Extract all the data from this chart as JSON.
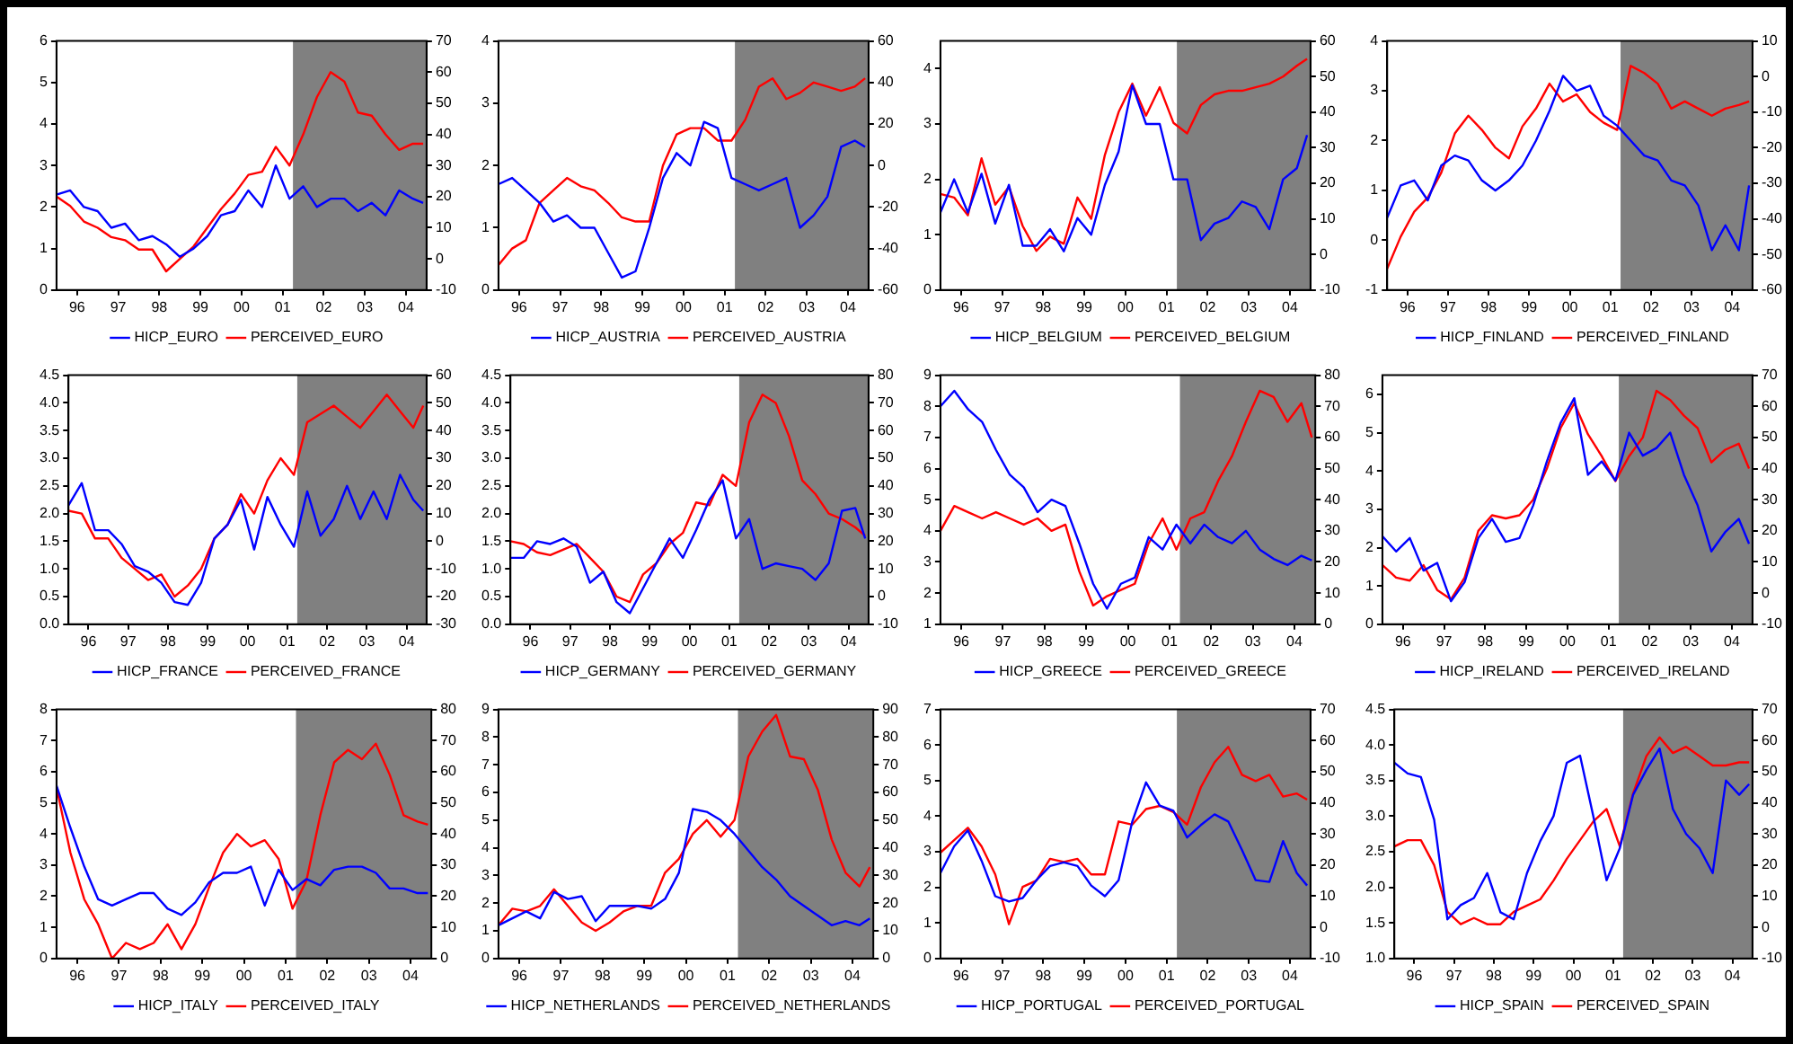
{
  "chart_data": [
    {
      "type": "line",
      "x": [
        "1995-07",
        "1995-11",
        "1996-03",
        "1996-07",
        "1996-11",
        "1997-03",
        "1997-07",
        "1997-11",
        "1998-03",
        "1998-07",
        "1998-11",
        "1999-03",
        "1999-07",
        "1999-11",
        "2000-03",
        "2000-07",
        "2000-11",
        "2001-03",
        "2001-07",
        "2001-11",
        "2002-03",
        "2002-07",
        "2002-11",
        "2003-03",
        "2003-07",
        "2003-11",
        "2004-03",
        "2004-06"
      ],
      "xlim": [
        "1995-07",
        "2004-07"
      ],
      "xticks": [
        {
          "value": "1996",
          "label": "96"
        },
        {
          "value": "1997",
          "label": "97"
        },
        {
          "value": "1998",
          "label": "98"
        },
        {
          "value": "1999",
          "label": "99"
        },
        {
          "value": "2000",
          "label": "00"
        },
        {
          "value": "2001",
          "label": "01"
        },
        {
          "value": "2002",
          "label": "02"
        },
        {
          "value": "2003",
          "label": "03"
        },
        {
          "value": "2004",
          "label": "04"
        }
      ],
      "ylim": [
        0,
        6
      ],
      "yticks": [
        0,
        1,
        2,
        3,
        4,
        5,
        6
      ],
      "y2lim": [
        -10,
        70
      ],
      "y2ticks": [
        -10,
        0,
        10,
        20,
        30,
        40,
        50,
        60,
        70
      ],
      "legend": "bottom",
      "bands": [
        {
          "axis": "x",
          "from": "2001-04",
          "to": "2004-07",
          "color": "#808080"
        }
      ],
      "series": [
        {
          "name": "HICP_EURO",
          "color": "#0000ff",
          "values": [
            2.3,
            2.4,
            2.0,
            1.9,
            1.5,
            1.6,
            1.2,
            1.3,
            1.1,
            0.8,
            1.0,
            1.3,
            1.8,
            1.9,
            2.4,
            2.0,
            3.0,
            2.2,
            2.5,
            2.0,
            2.2,
            2.2,
            1.9,
            2.1,
            1.8,
            2.4,
            2.2,
            2.1
          ]
        },
        {
          "name": "PERCEIVED_EURO",
          "color": "#ff0000",
          "axis": "y2",
          "values": [
            20,
            17,
            12,
            10,
            7,
            6,
            3,
            3,
            -4,
            0,
            4,
            10,
            16,
            21,
            27,
            28,
            36,
            30,
            40,
            52,
            60,
            57,
            47,
            46,
            40,
            35,
            37,
            37
          ]
        }
      ]
    },
    {
      "type": "line",
      "x": [
        "1995-07",
        "1995-11",
        "1996-03",
        "1996-07",
        "1996-11",
        "1997-03",
        "1997-07",
        "1997-11",
        "1998-03",
        "1998-07",
        "1998-11",
        "1999-03",
        "1999-07",
        "1999-11",
        "2000-03",
        "2000-07",
        "2000-11",
        "2001-03",
        "2001-07",
        "2001-11",
        "2002-03",
        "2002-07",
        "2002-11",
        "2003-03",
        "2003-07",
        "2003-11",
        "2004-03",
        "2004-06"
      ],
      "xlim": [
        "1995-07",
        "2004-07"
      ],
      "xticks": [
        {
          "value": "1996",
          "label": "96"
        },
        {
          "value": "1997",
          "label": "97"
        },
        {
          "value": "1998",
          "label": "98"
        },
        {
          "value": "1999",
          "label": "99"
        },
        {
          "value": "2000",
          "label": "00"
        },
        {
          "value": "2001",
          "label": "01"
        },
        {
          "value": "2002",
          "label": "02"
        },
        {
          "value": "2003",
          "label": "03"
        },
        {
          "value": "2004",
          "label": "04"
        }
      ],
      "ylim": [
        0,
        4
      ],
      "yticks": [
        0,
        1,
        2,
        3,
        4
      ],
      "y2lim": [
        -60,
        60
      ],
      "y2ticks": [
        -60,
        -40,
        -20,
        0,
        20,
        40,
        60
      ],
      "legend": "bottom",
      "bands": [
        {
          "axis": "x",
          "from": "2001-04",
          "to": "2004-07",
          "color": "#808080"
        }
      ],
      "series": [
        {
          "name": "HICP_AUSTRIA",
          "color": "#0000ff",
          "values": [
            1.7,
            1.8,
            1.6,
            1.4,
            1.1,
            1.2,
            1.0,
            1.0,
            0.6,
            0.2,
            0.3,
            1.0,
            1.8,
            2.2,
            2.0,
            2.7,
            2.6,
            1.8,
            1.7,
            1.6,
            1.7,
            1.8,
            1.0,
            1.2,
            1.5,
            2.3,
            2.4,
            2.3
          ]
        },
        {
          "name": "PERCEIVED_AUSTRIA",
          "color": "#ff0000",
          "axis": "y2",
          "values": [
            -48,
            -40,
            -36,
            -18,
            -12,
            -6,
            -10,
            -12,
            -18,
            -25,
            -27,
            -27,
            0,
            15,
            18,
            18,
            12,
            12,
            22,
            38,
            42,
            32,
            35,
            40,
            38,
            36,
            38,
            42
          ]
        }
      ]
    },
    {
      "type": "line",
      "x": [
        "1995-07",
        "1995-11",
        "1996-03",
        "1996-07",
        "1996-11",
        "1997-03",
        "1997-07",
        "1997-11",
        "1998-03",
        "1998-07",
        "1998-11",
        "1999-03",
        "1999-07",
        "1999-11",
        "2000-03",
        "2000-07",
        "2000-11",
        "2001-03",
        "2001-07",
        "2001-11",
        "2002-03",
        "2002-07",
        "2002-11",
        "2003-03",
        "2003-07",
        "2003-11",
        "2004-03",
        "2004-06"
      ],
      "xlim": [
        "1995-07",
        "2004-07"
      ],
      "xticks": [
        {
          "value": "1996",
          "label": "96"
        },
        {
          "value": "1997",
          "label": "97"
        },
        {
          "value": "1998",
          "label": "98"
        },
        {
          "value": "1999",
          "label": "99"
        },
        {
          "value": "2000",
          "label": "00"
        },
        {
          "value": "2001",
          "label": "01"
        },
        {
          "value": "2002",
          "label": "02"
        },
        {
          "value": "2003",
          "label": "03"
        },
        {
          "value": "2004",
          "label": "04"
        }
      ],
      "ylim": [
        0,
        4.5
      ],
      "yticks": [
        0,
        1,
        2,
        3,
        4
      ],
      "y2lim": [
        -10,
        60
      ],
      "y2ticks": [
        -10,
        0,
        10,
        20,
        30,
        40,
        50,
        60
      ],
      "legend": "bottom",
      "bands": [
        {
          "axis": "x",
          "from": "2001-04",
          "to": "2004-07",
          "color": "#808080"
        }
      ],
      "series": [
        {
          "name": "HICP_BELGIUM",
          "color": "#0000ff",
          "values": [
            1.4,
            2.0,
            1.4,
            2.1,
            1.2,
            1.9,
            0.8,
            0.8,
            1.1,
            0.7,
            1.3,
            1.0,
            1.9,
            2.5,
            3.7,
            3.0,
            3.0,
            2.0,
            2.0,
            0.9,
            1.2,
            1.3,
            1.6,
            1.5,
            1.1,
            2.0,
            2.2,
            2.8
          ]
        },
        {
          "name": "PERCEIVED_BELGIUM",
          "color": "#ff0000",
          "axis": "y2",
          "values": [
            17,
            16,
            11,
            27,
            14,
            19,
            8,
            1,
            5,
            3,
            16,
            10,
            28,
            40,
            48,
            39,
            47,
            37,
            34,
            42,
            45,
            46,
            46,
            47,
            48,
            50,
            53,
            55
          ]
        }
      ]
    },
    {
      "type": "line",
      "x": [
        "1995-07",
        "1995-11",
        "1996-03",
        "1996-07",
        "1996-11",
        "1997-03",
        "1997-07",
        "1997-11",
        "1998-03",
        "1998-07",
        "1998-11",
        "1999-03",
        "1999-07",
        "1999-11",
        "2000-03",
        "2000-07",
        "2000-11",
        "2001-03",
        "2001-07",
        "2001-11",
        "2002-03",
        "2002-07",
        "2002-11",
        "2003-03",
        "2003-07",
        "2003-11",
        "2004-03",
        "2004-06"
      ],
      "xlim": [
        "1995-07",
        "2004-07"
      ],
      "xticks": [
        {
          "value": "1996",
          "label": "96"
        },
        {
          "value": "1997",
          "label": "97"
        },
        {
          "value": "1998",
          "label": "98"
        },
        {
          "value": "1999",
          "label": "99"
        },
        {
          "value": "2000",
          "label": "00"
        },
        {
          "value": "2001",
          "label": "01"
        },
        {
          "value": "2002",
          "label": "02"
        },
        {
          "value": "2003",
          "label": "03"
        },
        {
          "value": "2004",
          "label": "04"
        }
      ],
      "ylim": [
        -1,
        4
      ],
      "yticks": [
        -1,
        0,
        1,
        2,
        3,
        4
      ],
      "y2lim": [
        -60,
        10
      ],
      "y2ticks": [
        -60,
        -50,
        -40,
        -30,
        -20,
        -10,
        0,
        10
      ],
      "legend": "bottom",
      "bands": [
        {
          "axis": "x",
          "from": "2001-04",
          "to": "2004-07",
          "color": "#808080"
        }
      ],
      "series": [
        {
          "name": "HICP_FINLAND",
          "color": "#0000ff",
          "values": [
            0.45,
            1.1,
            1.2,
            0.8,
            1.5,
            1.7,
            1.6,
            1.2,
            1.0,
            1.2,
            1.5,
            2.0,
            2.6,
            3.3,
            3.0,
            3.1,
            2.5,
            2.3,
            2.0,
            1.7,
            1.6,
            1.2,
            1.1,
            0.7,
            -0.2,
            0.3,
            -0.2,
            1.1
          ]
        },
        {
          "name": "PERCEIVED_FINLAND",
          "color": "#ff0000",
          "axis": "y2",
          "values": [
            -54,
            -45,
            -38,
            -34,
            -27,
            -16,
            -11,
            -15,
            -20,
            -23,
            -14,
            -9,
            -2,
            -7,
            -5,
            -10,
            -13,
            -15,
            3,
            1,
            -2,
            -9,
            -7,
            -9,
            -11,
            -9,
            -8,
            -7
          ]
        }
      ]
    },
    {
      "type": "line",
      "x": [
        "1995-07",
        "1995-11",
        "1996-03",
        "1996-07",
        "1996-11",
        "1997-03",
        "1997-07",
        "1997-11",
        "1998-03",
        "1998-07",
        "1998-11",
        "1999-03",
        "1999-07",
        "1999-11",
        "2000-03",
        "2000-07",
        "2000-11",
        "2001-03",
        "2001-07",
        "2001-11",
        "2002-03",
        "2002-07",
        "2002-11",
        "2003-03",
        "2003-07",
        "2003-11",
        "2004-03",
        "2004-06"
      ],
      "xlim": [
        "1995-07",
        "2004-07"
      ],
      "xticks": [
        {
          "value": "1996",
          "label": "96"
        },
        {
          "value": "1997",
          "label": "97"
        },
        {
          "value": "1998",
          "label": "98"
        },
        {
          "value": "1999",
          "label": "99"
        },
        {
          "value": "2000",
          "label": "00"
        },
        {
          "value": "2001",
          "label": "01"
        },
        {
          "value": "2002",
          "label": "02"
        },
        {
          "value": "2003",
          "label": "03"
        },
        {
          "value": "2004",
          "label": "04"
        }
      ],
      "ylim": [
        0,
        4.5
      ],
      "yticks": [
        {
          "value": 0,
          "label": "0.0"
        },
        {
          "value": 0.5,
          "label": "0.5"
        },
        {
          "value": 1,
          "label": "1.0"
        },
        {
          "value": 1.5,
          "label": "1.5"
        },
        {
          "value": 2,
          "label": "2.0"
        },
        {
          "value": 2.5,
          "label": "2.5"
        },
        {
          "value": 3,
          "label": "3.0"
        },
        {
          "value": 3.5,
          "label": "3.5"
        },
        {
          "value": 4,
          "label": "4.0"
        },
        {
          "value": 4.5,
          "label": "4.5"
        }
      ],
      "y2lim": [
        -30,
        60
      ],
      "y2ticks": [
        -30,
        -20,
        -10,
        0,
        10,
        20,
        30,
        40,
        50,
        60
      ],
      "legend": "bottom",
      "bands": [
        {
          "axis": "x",
          "from": "2001-04",
          "to": "2004-07",
          "color": "#808080"
        }
      ],
      "series": [
        {
          "name": "HICP_FRANCE",
          "color": "#0000ff",
          "values": [
            2.15,
            2.55,
            1.7,
            1.7,
            1.45,
            1.05,
            0.95,
            0.75,
            0.4,
            0.35,
            0.75,
            1.55,
            1.8,
            2.25,
            1.35,
            2.3,
            1.8,
            1.4,
            2.4,
            1.6,
            1.9,
            2.5,
            1.9,
            2.4,
            1.9,
            2.7,
            2.25,
            2.05
          ]
        },
        {
          "name": "PERCEIVED_FRANCE",
          "color": "#ff0000",
          "axis": "y2",
          "values": [
            11,
            10,
            1,
            1,
            -6,
            -10,
            -14,
            -12,
            -20,
            -16,
            -10,
            1,
            6,
            17,
            10,
            22,
            30,
            24,
            43,
            46,
            49,
            45,
            41,
            47,
            53,
            47,
            41,
            49
          ]
        }
      ]
    },
    {
      "type": "line",
      "x": [
        "1995-07",
        "1995-11",
        "1996-03",
        "1996-07",
        "1996-11",
        "1997-03",
        "1997-07",
        "1997-11",
        "1998-03",
        "1998-07",
        "1998-11",
        "1999-03",
        "1999-07",
        "1999-11",
        "2000-03",
        "2000-07",
        "2000-11",
        "2001-03",
        "2001-07",
        "2001-11",
        "2002-03",
        "2002-07",
        "2002-11",
        "2003-03",
        "2003-07",
        "2003-11",
        "2004-03",
        "2004-06"
      ],
      "xlim": [
        "1995-07",
        "2004-07"
      ],
      "xticks": [
        {
          "value": "1996",
          "label": "96"
        },
        {
          "value": "1997",
          "label": "97"
        },
        {
          "value": "1998",
          "label": "98"
        },
        {
          "value": "1999",
          "label": "99"
        },
        {
          "value": "2000",
          "label": "00"
        },
        {
          "value": "2001",
          "label": "01"
        },
        {
          "value": "2002",
          "label": "02"
        },
        {
          "value": "2003",
          "label": "03"
        },
        {
          "value": "2004",
          "label": "04"
        }
      ],
      "ylim": [
        0,
        4.5
      ],
      "yticks": [
        {
          "value": 0,
          "label": "0.0"
        },
        {
          "value": 0.5,
          "label": "0.5"
        },
        {
          "value": 1,
          "label": "1.0"
        },
        {
          "value": 1.5,
          "label": "1.5"
        },
        {
          "value": 2,
          "label": "2.0"
        },
        {
          "value": 2.5,
          "label": "2.5"
        },
        {
          "value": 3,
          "label": "3.0"
        },
        {
          "value": 3.5,
          "label": "3.5"
        },
        {
          "value": 4,
          "label": "4.0"
        },
        {
          "value": 4.5,
          "label": "4.5"
        }
      ],
      "y2lim": [
        -10,
        80
      ],
      "y2ticks": [
        -10,
        0,
        10,
        20,
        30,
        40,
        50,
        60,
        70,
        80
      ],
      "legend": "bottom",
      "bands": [
        {
          "axis": "x",
          "from": "2001-04",
          "to": "2004-07",
          "color": "#808080"
        }
      ],
      "series": [
        {
          "name": "HICP_GERMANY",
          "color": "#0000ff",
          "values": [
            1.2,
            1.2,
            1.5,
            1.45,
            1.55,
            1.4,
            0.75,
            0.95,
            0.4,
            0.2,
            0.65,
            1.1,
            1.55,
            1.2,
            1.7,
            2.25,
            2.6,
            1.55,
            1.9,
            1.0,
            1.1,
            1.05,
            1.0,
            0.8,
            1.1,
            2.05,
            2.1,
            1.55
          ]
        },
        {
          "name": "PERCEIVED_GERMANY",
          "color": "#ff0000",
          "axis": "y2",
          "values": [
            20,
            19,
            16,
            15,
            17,
            19,
            14,
            9,
            0,
            -2,
            8,
            12,
            19,
            23,
            34,
            33,
            44,
            40,
            63,
            73,
            70,
            58,
            42,
            37,
            30,
            28,
            25,
            22
          ]
        }
      ]
    },
    {
      "type": "line",
      "x": [
        "1995-07",
        "1995-11",
        "1996-03",
        "1996-07",
        "1996-11",
        "1997-03",
        "1997-07",
        "1997-11",
        "1998-03",
        "1998-07",
        "1998-11",
        "1999-03",
        "1999-07",
        "1999-11",
        "2000-03",
        "2000-07",
        "2000-11",
        "2001-03",
        "2001-07",
        "2001-11",
        "2002-03",
        "2002-07",
        "2002-11",
        "2003-03",
        "2003-07",
        "2003-11",
        "2004-03",
        "2004-06"
      ],
      "xlim": [
        "1995-07",
        "2004-07"
      ],
      "xticks": [
        {
          "value": "1996",
          "label": "96"
        },
        {
          "value": "1997",
          "label": "97"
        },
        {
          "value": "1998",
          "label": "98"
        },
        {
          "value": "1999",
          "label": "99"
        },
        {
          "value": "2000",
          "label": "00"
        },
        {
          "value": "2001",
          "label": "01"
        },
        {
          "value": "2002",
          "label": "02"
        },
        {
          "value": "2003",
          "label": "03"
        },
        {
          "value": "2004",
          "label": "04"
        }
      ],
      "ylim": [
        1,
        9
      ],
      "yticks": [
        1,
        2,
        3,
        4,
        5,
        6,
        7,
        8,
        9
      ],
      "y2lim": [
        0,
        80
      ],
      "y2ticks": [
        0,
        10,
        20,
        30,
        40,
        50,
        60,
        70,
        80
      ],
      "legend": "bottom",
      "bands": [
        {
          "axis": "x",
          "from": "2001-04",
          "to": "2004-07",
          "color": "#808080"
        }
      ],
      "series": [
        {
          "name": "HICP_GREECE",
          "color": "#0000ff",
          "values": [
            8.0,
            8.5,
            7.9,
            7.5,
            6.6,
            5.8,
            5.4,
            4.6,
            5.0,
            4.8,
            3.6,
            2.3,
            1.5,
            2.3,
            2.5,
            3.8,
            3.4,
            4.2,
            3.6,
            4.2,
            3.8,
            3.6,
            4.0,
            3.4,
            3.1,
            2.9,
            3.2,
            3.05
          ]
        },
        {
          "name": "PERCEIVED_GREECE",
          "color": "#ff0000",
          "axis": "y2",
          "values": [
            30,
            38,
            36,
            34,
            36,
            34,
            32,
            34,
            30,
            32,
            17,
            6,
            9,
            11,
            13,
            26,
            34,
            24,
            34,
            36,
            46,
            54,
            65,
            75,
            73,
            65,
            71,
            60
          ]
        }
      ]
    },
    {
      "type": "line",
      "x": [
        "1995-07",
        "1995-11",
        "1996-03",
        "1996-07",
        "1996-11",
        "1997-03",
        "1997-07",
        "1997-11",
        "1998-03",
        "1998-07",
        "1998-11",
        "1999-03",
        "1999-07",
        "1999-11",
        "2000-03",
        "2000-07",
        "2000-11",
        "2001-03",
        "2001-07",
        "2001-11",
        "2002-03",
        "2002-07",
        "2002-11",
        "2003-03",
        "2003-07",
        "2003-11",
        "2004-03",
        "2004-06"
      ],
      "xlim": [
        "1995-07",
        "2004-07"
      ],
      "xticks": [
        {
          "value": "1996",
          "label": "96"
        },
        {
          "value": "1997",
          "label": "97"
        },
        {
          "value": "1998",
          "label": "98"
        },
        {
          "value": "1999",
          "label": "99"
        },
        {
          "value": "2000",
          "label": "00"
        },
        {
          "value": "2001",
          "label": "01"
        },
        {
          "value": "2002",
          "label": "02"
        },
        {
          "value": "2003",
          "label": "03"
        },
        {
          "value": "2004",
          "label": "04"
        }
      ],
      "ylim": [
        0,
        6.5
      ],
      "yticks": [
        0,
        1,
        2,
        3,
        4,
        5,
        6
      ],
      "y2lim": [
        -10,
        70
      ],
      "y2ticks": [
        -10,
        0,
        10,
        20,
        30,
        40,
        50,
        60,
        70
      ],
      "legend": "bottom",
      "bands": [
        {
          "axis": "x",
          "from": "2001-04",
          "to": "2004-07",
          "color": "#808080"
        }
      ],
      "series": [
        {
          "name": "HICP_IRELAND",
          "color": "#0000ff",
          "values": [
            2.3,
            1.9,
            2.25,
            1.4,
            1.6,
            0.6,
            1.1,
            2.25,
            2.75,
            2.15,
            2.25,
            3.1,
            4.25,
            5.25,
            5.9,
            3.9,
            4.25,
            3.75,
            5.0,
            4.4,
            4.6,
            5.0,
            3.9,
            3.1,
            1.9,
            2.4,
            2.75,
            2.1
          ]
        },
        {
          "name": "PERCEIVED_IRELAND",
          "color": "#ff0000",
          "axis": "y2",
          "values": [
            9,
            5,
            4,
            9,
            1,
            -2,
            5,
            20,
            25,
            24,
            25,
            30,
            40,
            53,
            61,
            51,
            44,
            36,
            44,
            50,
            65,
            62,
            57,
            53,
            42,
            46,
            48,
            40
          ]
        }
      ]
    },
    {
      "type": "line",
      "x": [
        "1995-07",
        "1995-11",
        "1996-03",
        "1996-07",
        "1996-11",
        "1997-03",
        "1997-07",
        "1997-11",
        "1998-03",
        "1998-07",
        "1998-11",
        "1999-03",
        "1999-07",
        "1999-11",
        "2000-03",
        "2000-07",
        "2000-11",
        "2001-03",
        "2001-07",
        "2001-11",
        "2002-03",
        "2002-07",
        "2002-11",
        "2003-03",
        "2003-07",
        "2003-11",
        "2004-03",
        "2004-06"
      ],
      "xlim": [
        "1995-07",
        "2004-07"
      ],
      "xticks": [
        {
          "value": "1996",
          "label": "96"
        },
        {
          "value": "1997",
          "label": "97"
        },
        {
          "value": "1998",
          "label": "98"
        },
        {
          "value": "1999",
          "label": "99"
        },
        {
          "value": "2000",
          "label": "00"
        },
        {
          "value": "2001",
          "label": "01"
        },
        {
          "value": "2002",
          "label": "02"
        },
        {
          "value": "2003",
          "label": "03"
        },
        {
          "value": "2004",
          "label": "04"
        }
      ],
      "ylim": [
        0,
        8
      ],
      "yticks": [
        0,
        1,
        2,
        3,
        4,
        5,
        6,
        7,
        8
      ],
      "y2lim": [
        0,
        80
      ],
      "y2ticks": [
        0,
        10,
        20,
        30,
        40,
        50,
        60,
        70,
        80
      ],
      "legend": "bottom",
      "bands": [
        {
          "axis": "x",
          "from": "2001-04",
          "to": "2004-07",
          "color": "#808080"
        }
      ],
      "series": [
        {
          "name": "HICP_ITALY",
          "color": "#0000ff",
          "values": [
            5.55,
            4.2,
            2.95,
            1.9,
            1.7,
            1.9,
            2.1,
            2.1,
            1.6,
            1.4,
            1.8,
            2.45,
            2.75,
            2.75,
            2.95,
            1.7,
            2.85,
            2.2,
            2.55,
            2.35,
            2.85,
            2.95,
            2.95,
            2.75,
            2.25,
            2.25,
            2.1,
            2.1
          ]
        },
        {
          "name": "PERCEIVED_ITALY",
          "color": "#ff0000",
          "axis": "y2",
          "values": [
            55,
            34,
            19,
            11,
            0,
            5,
            3,
            5,
            11,
            3,
            11,
            23,
            34,
            40,
            36,
            38,
            32,
            16,
            25,
            46,
            63,
            67,
            64,
            69,
            59,
            46,
            44,
            43
          ]
        }
      ]
    },
    {
      "type": "line",
      "x": [
        "1995-07",
        "1995-11",
        "1996-03",
        "1996-07",
        "1996-11",
        "1997-03",
        "1997-07",
        "1997-11",
        "1998-03",
        "1998-07",
        "1998-11",
        "1999-03",
        "1999-07",
        "1999-11",
        "2000-03",
        "2000-07",
        "2000-11",
        "2001-03",
        "2001-07",
        "2001-11",
        "2002-03",
        "2002-07",
        "2002-11",
        "2003-03",
        "2003-07",
        "2003-11",
        "2004-03",
        "2004-06"
      ],
      "xlim": [
        "1995-07",
        "2004-07"
      ],
      "xticks": [
        {
          "value": "1996",
          "label": "96"
        },
        {
          "value": "1997",
          "label": "97"
        },
        {
          "value": "1998",
          "label": "98"
        },
        {
          "value": "1999",
          "label": "99"
        },
        {
          "value": "2000",
          "label": "00"
        },
        {
          "value": "2001",
          "label": "01"
        },
        {
          "value": "2002",
          "label": "02"
        },
        {
          "value": "2003",
          "label": "03"
        },
        {
          "value": "2004",
          "label": "04"
        }
      ],
      "ylim": [
        0,
        9
      ],
      "yticks": [
        0,
        1,
        2,
        3,
        4,
        5,
        6,
        7,
        8,
        9
      ],
      "y2lim": [
        0,
        90
      ],
      "y2ticks": [
        0,
        10,
        20,
        30,
        40,
        50,
        60,
        70,
        80,
        90
      ],
      "legend": "bottom",
      "bands": [
        {
          "axis": "x",
          "from": "2001-04",
          "to": "2004-07",
          "color": "#808080"
        }
      ],
      "series": [
        {
          "name": "HICP_NETHERLANDS",
          "color": "#0000ff",
          "values": [
            1.2,
            1.45,
            1.7,
            1.45,
            2.4,
            2.15,
            2.25,
            1.35,
            1.9,
            1.9,
            1.9,
            1.8,
            2.15,
            3.1,
            5.4,
            5.3,
            5.0,
            4.5,
            3.9,
            3.3,
            2.85,
            2.25,
            1.9,
            1.55,
            1.2,
            1.35,
            1.2,
            1.45
          ]
        },
        {
          "name": "PERCEIVED_NETHERLANDS",
          "color": "#ff0000",
          "axis": "y2",
          "values": [
            12,
            18,
            17,
            19,
            25,
            19,
            13,
            10,
            13,
            17,
            19,
            19,
            31,
            36,
            45,
            50,
            44,
            50,
            73,
            82,
            88,
            73,
            72,
            61,
            43,
            31,
            26,
            33
          ]
        }
      ]
    },
    {
      "type": "line",
      "x": [
        "1995-07",
        "1995-11",
        "1996-03",
        "1996-07",
        "1996-11",
        "1997-03",
        "1997-07",
        "1997-11",
        "1998-03",
        "1998-07",
        "1998-11",
        "1999-03",
        "1999-07",
        "1999-11",
        "2000-03",
        "2000-07",
        "2000-11",
        "2001-03",
        "2001-07",
        "2001-11",
        "2002-03",
        "2002-07",
        "2002-11",
        "2003-03",
        "2003-07",
        "2003-11",
        "2004-03",
        "2004-06"
      ],
      "xlim": [
        "1995-07",
        "2004-07"
      ],
      "xticks": [
        {
          "value": "1996",
          "label": "96"
        },
        {
          "value": "1997",
          "label": "97"
        },
        {
          "value": "1998",
          "label": "98"
        },
        {
          "value": "1999",
          "label": "99"
        },
        {
          "value": "2000",
          "label": "00"
        },
        {
          "value": "2001",
          "label": "01"
        },
        {
          "value": "2002",
          "label": "02"
        },
        {
          "value": "2003",
          "label": "03"
        },
        {
          "value": "2004",
          "label": "04"
        }
      ],
      "ylim": [
        0,
        7
      ],
      "yticks": [
        0,
        1,
        2,
        3,
        4,
        5,
        6,
        7
      ],
      "y2lim": [
        -10,
        70
      ],
      "y2ticks": [
        -10,
        0,
        10,
        20,
        30,
        40,
        50,
        60,
        70
      ],
      "legend": "bottom",
      "bands": [
        {
          "axis": "x",
          "from": "2001-04",
          "to": "2004-07",
          "color": "#808080"
        }
      ],
      "series": [
        {
          "name": "HICP_PORTUGAL",
          "color": "#0000ff",
          "values": [
            2.4,
            3.15,
            3.6,
            2.75,
            1.75,
            1.6,
            1.7,
            2.2,
            2.6,
            2.7,
            2.6,
            2.05,
            1.75,
            2.2,
            3.85,
            4.95,
            4.3,
            4.15,
            3.4,
            3.75,
            4.05,
            3.85,
            3.05,
            2.2,
            2.15,
            3.3,
            2.4,
            2.05
          ]
        },
        {
          "name": "PERCEIVED_PORTUGAL",
          "color": "#ff0000",
          "axis": "y2",
          "values": [
            24,
            28,
            32,
            26,
            17,
            1,
            13,
            15,
            22,
            21,
            22,
            17,
            17,
            34,
            33,
            38,
            39,
            37,
            33,
            45,
            53,
            58,
            49,
            47,
            49,
            42,
            43,
            41
          ]
        }
      ]
    },
    {
      "type": "line",
      "x": [
        "1995-07",
        "1995-11",
        "1996-03",
        "1996-07",
        "1996-11",
        "1997-03",
        "1997-07",
        "1997-11",
        "1998-03",
        "1998-07",
        "1998-11",
        "1999-03",
        "1999-07",
        "1999-11",
        "2000-03",
        "2000-07",
        "2000-11",
        "2001-03",
        "2001-07",
        "2001-11",
        "2002-03",
        "2002-07",
        "2002-11",
        "2003-03",
        "2003-07",
        "2003-11",
        "2004-03",
        "2004-06"
      ],
      "xlim": [
        "1995-07",
        "2004-07"
      ],
      "xticks": [
        {
          "value": "1996",
          "label": "96"
        },
        {
          "value": "1997",
          "label": "97"
        },
        {
          "value": "1998",
          "label": "98"
        },
        {
          "value": "1999",
          "label": "99"
        },
        {
          "value": "2000",
          "label": "00"
        },
        {
          "value": "2001",
          "label": "01"
        },
        {
          "value": "2002",
          "label": "02"
        },
        {
          "value": "2003",
          "label": "03"
        },
        {
          "value": "2004",
          "label": "04"
        }
      ],
      "ylim": [
        1,
        4.5
      ],
      "yticks": [
        {
          "value": 1,
          "label": "1.0"
        },
        {
          "value": 1.5,
          "label": "1.5"
        },
        {
          "value": 2,
          "label": "2.0"
        },
        {
          "value": 2.5,
          "label": "2.5"
        },
        {
          "value": 3,
          "label": "3.0"
        },
        {
          "value": 3.5,
          "label": "3.5"
        },
        {
          "value": 4,
          "label": "4.0"
        },
        {
          "value": 4.5,
          "label": "4.5"
        }
      ],
      "y2lim": [
        -10,
        70
      ],
      "y2ticks": [
        -10,
        0,
        10,
        20,
        30,
        40,
        50,
        60,
        70
      ],
      "legend": "bottom",
      "bands": [
        {
          "axis": "x",
          "from": "2001-04",
          "to": "2004-07",
          "color": "#808080"
        }
      ],
      "series": [
        {
          "name": "HICP_SPAIN",
          "color": "#0000ff",
          "values": [
            3.75,
            3.6,
            3.55,
            2.95,
            1.55,
            1.75,
            1.85,
            2.2,
            1.65,
            1.55,
            2.2,
            2.65,
            3.0,
            3.75,
            3.85,
            3.0,
            2.1,
            2.55,
            3.3,
            3.65,
            3.95,
            3.1,
            2.75,
            2.55,
            2.2,
            3.5,
            3.3,
            3.45
          ]
        },
        {
          "name": "PERCEIVED_SPAIN",
          "color": "#ff0000",
          "axis": "y2",
          "values": [
            26,
            28,
            28,
            20,
            5,
            1,
            3,
            1,
            1,
            5,
            7,
            9,
            15,
            22,
            28,
            34,
            38,
            26,
            43,
            55,
            61,
            56,
            58,
            55,
            52,
            52,
            53,
            53
          ]
        }
      ]
    }
  ]
}
